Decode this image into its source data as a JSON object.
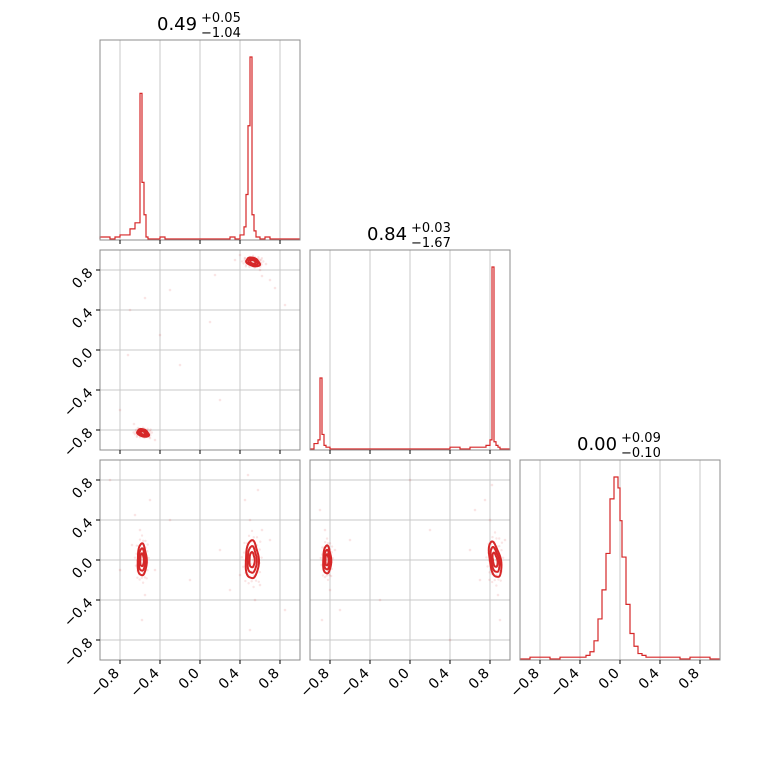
{
  "chart_data": {
    "type": "corner",
    "color": "#d62728",
    "grid": true,
    "range": [
      -1,
      1
    ],
    "tick_values": [
      -0.8,
      -0.4,
      0.0,
      0.4,
      0.8
    ],
    "tick_labels": [
      "−0.8",
      "−0.4",
      "0.0",
      "0.4",
      "0.8"
    ],
    "parameters": [
      {
        "median": "0.49",
        "plus": "+0.05",
        "minus": "−1.04"
      },
      {
        "median": "0.84",
        "plus": "+0.03",
        "minus": "−1.67"
      },
      {
        "median": "0.00",
        "plus": "+0.09",
        "minus": "−0.10"
      }
    ],
    "histograms": [
      {
        "bin_edges": [
          -1.0,
          -0.95,
          -0.9,
          -0.85,
          -0.8,
          -0.75,
          -0.7,
          -0.65,
          -0.6,
          -0.58,
          -0.56,
          -0.54,
          -0.52,
          -0.5,
          -0.45,
          -0.4,
          -0.35,
          -0.3,
          -0.25,
          -0.2,
          -0.15,
          -0.1,
          -0.05,
          0.0,
          0.05,
          0.1,
          0.15,
          0.2,
          0.25,
          0.3,
          0.35,
          0.4,
          0.44,
          0.46,
          0.48,
          0.5,
          0.52,
          0.54,
          0.56,
          0.6,
          0.65,
          0.7,
          0.75,
          0.8,
          0.85,
          0.9,
          0.95,
          1.0
        ],
        "counts": [
          0.01,
          0.01,
          0.0,
          0.01,
          0.02,
          0.02,
          0.05,
          0.08,
          0.72,
          0.28,
          0.12,
          0.01,
          0.0,
          0.0,
          0.0,
          0.01,
          0.0,
          0.0,
          0.0,
          0.0,
          0.0,
          0.0,
          0.0,
          0.0,
          0.0,
          0.0,
          0.0,
          0.0,
          0.0,
          0.01,
          0.0,
          0.02,
          0.06,
          0.22,
          0.56,
          0.9,
          0.12,
          0.04,
          0.01,
          0.0,
          0.01,
          0.0,
          0.0,
          0.0,
          0.0,
          0.0,
          0.0
        ]
      },
      {
        "bin_edges": [
          -1.0,
          -0.96,
          -0.92,
          -0.9,
          -0.88,
          -0.86,
          -0.84,
          -0.82,
          -0.8,
          -0.75,
          -0.7,
          -0.6,
          -0.5,
          -0.4,
          -0.3,
          -0.2,
          -0.1,
          0.0,
          0.1,
          0.2,
          0.3,
          0.4,
          0.5,
          0.6,
          0.7,
          0.76,
          0.8,
          0.82,
          0.84,
          0.86,
          0.88,
          0.9,
          0.95,
          1.0
        ],
        "counts": [
          0.0,
          0.03,
          0.05,
          0.39,
          0.08,
          0.02,
          0.01,
          0.01,
          0.0,
          0.0,
          0.0,
          0.0,
          0.0,
          0.0,
          0.0,
          0.0,
          0.0,
          0.0,
          0.0,
          0.0,
          0.0,
          0.01,
          0.0,
          0.01,
          0.01,
          0.02,
          0.05,
          1.0,
          0.04,
          0.02,
          0.01,
          0.0,
          0.0
        ]
      },
      {
        "bin_edges": [
          -1.0,
          -0.9,
          -0.8,
          -0.7,
          -0.6,
          -0.5,
          -0.4,
          -0.34,
          -0.3,
          -0.26,
          -0.22,
          -0.18,
          -0.14,
          -0.1,
          -0.06,
          -0.02,
          0.0,
          0.02,
          0.06,
          0.1,
          0.14,
          0.18,
          0.22,
          0.26,
          0.3,
          0.4,
          0.5,
          0.6,
          0.7,
          0.8,
          0.9,
          1.0
        ],
        "counts": [
          0.0,
          0.01,
          0.01,
          0.0,
          0.01,
          0.01,
          0.01,
          0.02,
          0.04,
          0.1,
          0.22,
          0.38,
          0.58,
          0.88,
          1.0,
          0.94,
          0.76,
          0.56,
          0.3,
          0.14,
          0.07,
          0.03,
          0.02,
          0.01,
          0.01,
          0.01,
          0.01,
          0.0,
          0.01,
          0.01,
          0.0
        ]
      }
    ],
    "pairs": [
      {
        "row": 1,
        "col": 0,
        "clusters": [
          {
            "cx": 0.53,
            "cy": 0.88,
            "rx": 0.07,
            "ry": 0.04,
            "angle": -20
          },
          {
            "cx": -0.57,
            "cy": -0.83,
            "rx": 0.06,
            "ry": 0.035,
            "angle": -20
          }
        ],
        "scatter": [
          [
            0.45,
            0.92
          ],
          [
            0.4,
            0.95
          ],
          [
            0.6,
            0.8
          ],
          [
            0.62,
            0.74
          ],
          [
            0.7,
            0.7
          ],
          [
            0.75,
            0.62
          ],
          [
            -0.62,
            -0.78
          ],
          [
            -0.66,
            -0.74
          ],
          [
            -0.5,
            -0.88
          ],
          [
            -0.45,
            -0.9
          ],
          [
            -0.3,
            0.6
          ],
          [
            -0.55,
            0.52
          ],
          [
            0.1,
            0.28
          ],
          [
            -0.2,
            -0.15
          ],
          [
            -0.72,
            -0.05
          ],
          [
            0.35,
            0.9
          ],
          [
            0.85,
            0.45
          ],
          [
            -0.8,
            -0.6
          ],
          [
            -0.4,
            0.15
          ],
          [
            0.15,
            0.75
          ],
          [
            -0.7,
            0.4
          ],
          [
            0.2,
            -0.5
          ],
          [
            0.6,
            0.9
          ],
          [
            0.66,
            0.86
          ]
        ]
      },
      {
        "row": 2,
        "col": 0,
        "clusters": [
          {
            "cx": -0.58,
            "cy": 0.0,
            "rx": 0.045,
            "ry": 0.16,
            "angle": 0
          },
          {
            "cx": 0.52,
            "cy": 0.0,
            "rx": 0.065,
            "ry": 0.19,
            "angle": 0
          }
        ],
        "scatter": [
          [
            -0.6,
            0.3
          ],
          [
            -0.55,
            -0.35
          ],
          [
            -0.65,
            0.45
          ],
          [
            0.5,
            0.4
          ],
          [
            0.55,
            -0.4
          ],
          [
            0.45,
            0.6
          ],
          [
            0.58,
            0.7
          ],
          [
            -0.5,
            0.6
          ],
          [
            -0.58,
            -0.6
          ],
          [
            0.5,
            -0.7
          ],
          [
            0.2,
            0.1
          ],
          [
            -0.1,
            -0.2
          ],
          [
            0.7,
            0.2
          ],
          [
            -0.8,
            -0.1
          ],
          [
            0.3,
            -0.3
          ],
          [
            -0.3,
            0.4
          ],
          [
            0.85,
            -0.5
          ],
          [
            -0.9,
            0.8
          ],
          [
            0.62,
            0.3
          ],
          [
            -0.45,
            -0.1
          ],
          [
            0.4,
            -0.15
          ],
          [
            0.6,
            -0.25
          ],
          [
            -0.68,
            0.15
          ],
          [
            0.48,
            0.85
          ]
        ]
      },
      {
        "row": 2,
        "col": 1,
        "clusters": [
          {
            "cx": -0.83,
            "cy": 0.0,
            "rx": 0.04,
            "ry": 0.14,
            "angle": 0
          },
          {
            "cx": 0.85,
            "cy": 0.0,
            "rx": 0.055,
            "ry": 0.18,
            "angle": 10
          }
        ],
        "scatter": [
          [
            -0.85,
            0.3
          ],
          [
            -0.8,
            -0.3
          ],
          [
            -0.9,
            0.5
          ],
          [
            0.8,
            0.4
          ],
          [
            0.88,
            -0.35
          ],
          [
            0.75,
            0.6
          ],
          [
            0.9,
            -0.6
          ],
          [
            -0.7,
            -0.5
          ],
          [
            -0.6,
            0.2
          ],
          [
            0.6,
            0.1
          ],
          [
            0.0,
            0.8
          ],
          [
            0.4,
            -0.8
          ],
          [
            -0.3,
            -0.4
          ],
          [
            0.2,
            0.3
          ],
          [
            0.7,
            -0.2
          ],
          [
            -0.75,
            0.1
          ],
          [
            0.95,
            0.2
          ],
          [
            0.82,
            0.75
          ],
          [
            -0.88,
            -0.6
          ],
          [
            0.65,
            0.5
          ]
        ]
      }
    ]
  }
}
